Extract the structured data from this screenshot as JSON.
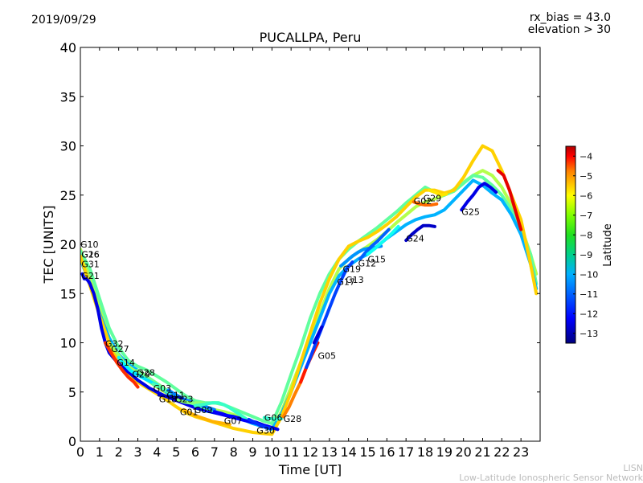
{
  "header": {
    "date": "2019/09/29",
    "rx_bias": "rx_bias = 43.0",
    "elevation": "elevation > 30"
  },
  "footer": {
    "credit_short": "LISN",
    "credit_full": "Low-Latitude Ionospheric Sensor Network"
  },
  "chart_data": {
    "type": "scatter",
    "title": "PUCALLPA, Peru",
    "xlabel": "Time [UT]",
    "ylabel": "TEC [UNITS]",
    "xlim": [
      0,
      24
    ],
    "ylim": [
      0,
      40
    ],
    "x_ticks": [
      0,
      1,
      2,
      3,
      4,
      5,
      6,
      7,
      8,
      9,
      10,
      11,
      12,
      13,
      14,
      15,
      16,
      17,
      18,
      19,
      20,
      21,
      22,
      23
    ],
    "y_ticks": [
      0,
      5,
      10,
      15,
      20,
      25,
      30,
      35,
      40
    ],
    "grid": false,
    "colorbar": {
      "label": "Latitude",
      "range": [
        -13.5,
        -3.5
      ],
      "ticks": [
        -13,
        -12,
        -11,
        -10,
        -9,
        -8,
        -7,
        -6,
        -5,
        -4
      ],
      "colormap": [
        "#00007f",
        "#0000ff",
        "#007fff",
        "#00ffff",
        "#7fff7f",
        "#ffff00",
        "#ff7f00",
        "#ff0000",
        "#7f0000"
      ]
    },
    "series": [
      {
        "name": "G10",
        "lat": -8.0,
        "x": [
          0.0,
          0.5,
          1.0,
          1.5,
          2.0,
          2.5,
          3.0,
          3.5,
          4.0,
          4.5,
          5.0,
          5.5,
          6.0,
          6.5,
          7.0,
          7.5,
          8.0,
          8.5,
          9.0,
          9.5,
          10.0,
          10.5,
          11.0,
          11.5,
          12.0,
          12.5,
          13.0,
          13.5,
          14.0,
          14.5,
          15.0,
          15.5,
          16.0,
          16.5,
          17.0,
          17.5,
          18.0,
          18.5,
          19.0,
          19.5,
          20.0,
          20.5,
          21.0,
          21.5,
          22.0,
          22.5,
          23.0,
          23.5,
          23.8
        ],
        "y": [
          19.5,
          16.5,
          13.5,
          10.5,
          8.5,
          7.5,
          6.8,
          6.2,
          5.5,
          4.9,
          4.3,
          3.8,
          3.5,
          3.3,
          3.2,
          3.0,
          2.7,
          2.3,
          2.0,
          1.7,
          1.3,
          3.0,
          5.5,
          8.0,
          10.5,
          13.0,
          15.5,
          17.5,
          18.5,
          19.2,
          19.8,
          20.5,
          21.3,
          22.2,
          23.0,
          23.8,
          24.3,
          24.6,
          25.0,
          25.6,
          26.3,
          27.0,
          27.5,
          27.0,
          25.8,
          24.0,
          21.8,
          19.0,
          17.0
        ]
      },
      {
        "name": "G16",
        "lat": -8.8,
        "x": [
          0.0,
          0.5,
          1.0,
          1.5,
          2.0,
          2.5,
          3.0,
          3.5,
          4.0,
          4.5,
          5.0,
          5.5,
          6.0,
          6.5,
          7.0,
          7.5,
          8.0,
          8.5,
          9.0,
          9.5,
          10.0,
          10.5,
          11.0,
          11.5,
          12.0,
          12.5,
          13.0,
          13.5,
          14.0,
          14.5,
          15.0,
          15.5,
          16.0,
          16.5,
          17.0,
          17.5,
          18.0,
          18.5,
          19.0,
          19.5,
          20.0,
          20.5,
          21.0,
          21.5,
          22.0,
          22.5,
          23.0,
          23.5,
          23.8
        ],
        "y": [
          19.3,
          17.5,
          14.5,
          11.5,
          9.5,
          8.2,
          7.6,
          7.2,
          6.6,
          6.0,
          5.3,
          4.6,
          4.1,
          3.9,
          3.9,
          3.7,
          3.3,
          2.9,
          2.5,
          2.1,
          1.8,
          4.0,
          6.8,
          9.5,
          12.5,
          15.0,
          17.0,
          18.5,
          19.5,
          20.3,
          21.0,
          21.7,
          22.5,
          23.3,
          24.2,
          25.0,
          25.8,
          25.3,
          25.0,
          25.4,
          26.2,
          27.0,
          26.8,
          26.0,
          25.0,
          23.5,
          21.5,
          19.0,
          16.0
        ]
      },
      {
        "name": "G31",
        "lat": -10.5,
        "x": [
          0.0,
          0.5,
          1.0,
          1.5,
          2.0,
          2.5,
          3.0,
          3.5,
          4.0,
          4.5,
          5.0,
          5.5,
          6.0,
          6.5,
          7.0,
          7.5,
          8.0,
          8.5,
          9.0,
          9.5,
          10.0,
          10.5,
          11.0,
          11.5,
          12.0,
          12.5,
          13.0,
          13.5,
          14.0,
          14.5,
          15.0,
          15.5,
          16.0,
          16.5,
          17.0,
          17.5,
          18.0,
          18.5,
          19.0,
          19.5,
          20.0,
          20.5,
          21.0,
          21.5,
          22.0,
          22.5,
          23.0,
          23.5,
          23.8
        ],
        "y": [
          18.5,
          16.0,
          13.0,
          10.5,
          8.8,
          7.8,
          7.2,
          6.5,
          5.8,
          5.0,
          4.3,
          3.8,
          3.4,
          3.1,
          2.9,
          2.7,
          2.5,
          2.2,
          1.8,
          1.5,
          1.2,
          2.8,
          5.0,
          7.5,
          10.0,
          12.5,
          15.0,
          16.8,
          17.8,
          18.5,
          19.0,
          19.8,
          20.6,
          21.3,
          22.0,
          22.5,
          22.8,
          23.0,
          23.5,
          24.5,
          25.5,
          26.5,
          26.0,
          25.2,
          24.5,
          23.0,
          21.0,
          18.0,
          15.5
        ]
      },
      {
        "name": "G26",
        "lat": -6.8,
        "x": [
          0.0,
          0.5,
          1.0,
          1.5,
          2.0,
          2.5,
          3.0,
          3.5,
          4.0,
          4.5,
          5.0,
          5.5,
          6.0,
          6.5,
          7.0,
          7.5,
          8.0,
          8.5,
          9.0,
          9.5,
          10.0,
          10.5,
          11.0,
          11.5,
          12.0,
          12.5,
          13.0,
          13.5,
          14.0,
          14.5,
          15.0,
          15.5,
          16.0,
          16.5,
          17.0,
          17.5,
          18.0,
          18.5,
          19.0,
          19.5,
          20.0,
          20.5,
          21.0,
          21.5,
          22.0,
          22.5,
          23.0,
          23.5,
          23.8
        ],
        "y": [
          18.8,
          15.8,
          12.8,
          10.0,
          8.0,
          6.8,
          6.0,
          5.4,
          4.8,
          4.2,
          3.5,
          2.9,
          2.5,
          2.2,
          1.9,
          1.6,
          1.3,
          1.1,
          0.9,
          0.8,
          0.7,
          2.5,
          5.0,
          8.0,
          11.0,
          14.0,
          16.5,
          18.5,
          19.8,
          20.3,
          20.7,
          21.3,
          22.0,
          22.8,
          23.8,
          24.8,
          25.5,
          25.5,
          25.2,
          25.5,
          26.8,
          28.5,
          30.0,
          29.5,
          27.5,
          25.0,
          22.5,
          18.0,
          15.0
        ]
      },
      {
        "name": "G21",
        "lat": -12.5,
        "x": [
          0.1,
          0.2,
          0.3,
          0.4,
          0.5,
          0.7,
          0.9,
          1.1,
          1.3,
          1.5,
          1.8,
          2.1,
          2.4,
          2.7,
          3.0,
          3.3,
          3.6,
          4.0,
          4.4,
          4.8,
          5.2,
          5.6,
          6.0,
          6.4,
          6.8,
          7.2,
          7.6,
          8.0,
          8.4,
          8.8,
          9.2,
          9.6,
          10.0,
          10.3
        ],
        "y": [
          17.0,
          16.5,
          16.5,
          16.3,
          16.0,
          15.0,
          13.5,
          11.5,
          10.0,
          9.0,
          8.3,
          7.7,
          7.2,
          6.7,
          6.2,
          5.8,
          5.4,
          5.0,
          4.6,
          4.3,
          4.0,
          3.7,
          3.4,
          3.2,
          3.0,
          2.8,
          2.6,
          2.5,
          2.3,
          2.1,
          1.9,
          1.6,
          1.4,
          1.2
        ]
      },
      {
        "name": "G32",
        "lat": -5.2,
        "x": [
          1.3,
          1.6,
          1.9,
          2.2,
          2.5,
          2.8,
          3.0
        ],
        "y": [
          10.0,
          9.0,
          8.0,
          7.2,
          6.5,
          6.0,
          5.5
        ]
      },
      {
        "name": "G27",
        "lat": -8.2,
        "x": [
          1.6,
          1.9,
          2.2,
          2.5,
          2.8,
          3.1,
          3.4
        ],
        "y": [
          9.8,
          9.0,
          8.2,
          7.6,
          7.2,
          6.9,
          6.6
        ]
      },
      {
        "name": "G14",
        "lat": -9.8,
        "x": [
          2.0,
          2.3,
          2.6,
          2.9,
          3.2,
          3.5,
          3.8,
          4.1
        ],
        "y": [
          8.5,
          7.8,
          7.2,
          6.8,
          6.6,
          6.3,
          6.0,
          5.6
        ]
      },
      {
        "name": "G28",
        "lat": -8.6,
        "x": [
          3.0,
          3.3,
          3.6,
          3.9,
          4.2,
          4.5,
          4.8,
          5.0
        ],
        "y": [
          7.2,
          6.8,
          6.4,
          6.0,
          5.6,
          5.2,
          4.8,
          4.5
        ]
      },
      {
        "name": "G29",
        "lat": -10.0,
        "x": [
          2.8,
          3.1,
          3.4,
          3.7,
          4.0
        ],
        "y": [
          7.0,
          6.6,
          6.3,
          6.0,
          5.7
        ]
      },
      {
        "name": "G03",
        "lat": -9.0,
        "x": [
          3.8,
          4.1,
          4.4,
          4.7,
          5.0,
          5.3,
          5.6,
          5.9,
          6.2,
          6.5,
          6.8,
          7.1
        ],
        "y": [
          5.8,
          5.5,
          5.2,
          4.9,
          4.6,
          4.3,
          4.0,
          3.8,
          3.6,
          3.4,
          3.2,
          3.0
        ]
      },
      {
        "name": "G11",
        "lat": -11.0,
        "x": [
          4.6,
          4.9,
          5.2,
          5.5,
          5.8,
          6.1,
          6.4,
          6.7,
          7.0
        ],
        "y": [
          5.2,
          4.8,
          4.5,
          4.2,
          4.0,
          3.8,
          3.6,
          3.4,
          3.2
        ]
      },
      {
        "name": "G18",
        "lat": -12.8,
        "x": [
          4.1,
          4.4,
          4.7,
          5.0,
          5.3
        ],
        "y": [
          4.7,
          4.6,
          4.5,
          4.4,
          4.3
        ]
      },
      {
        "name": "G23",
        "lat": -8.4,
        "x": [
          5.1,
          5.4,
          5.7,
          6.0,
          6.3,
          6.6,
          6.9,
          7.2,
          7.5,
          7.8,
          8.1
        ],
        "y": [
          4.2,
          4.0,
          3.9,
          3.9,
          3.9,
          3.8,
          3.9,
          3.9,
          3.7,
          3.4,
          3.0
        ]
      },
      {
        "name": "G01",
        "lat": -6.5,
        "x": [
          5.4,
          5.7,
          6.0,
          6.3,
          6.6,
          6.9,
          7.2,
          7.5,
          7.8
        ],
        "y": [
          3.2,
          2.9,
          2.6,
          2.4,
          2.2,
          2.0,
          1.9,
          1.8,
          1.7
        ]
      },
      {
        "name": "G09",
        "lat": -9.2,
        "x": [
          6.0,
          6.3,
          6.6,
          6.9,
          7.2,
          7.5,
          7.8,
          8.1,
          8.4,
          8.7,
          9.0
        ],
        "y": [
          3.6,
          3.7,
          3.8,
          3.9,
          3.9,
          3.7,
          3.4,
          3.0,
          2.6,
          2.2,
          1.9
        ]
      },
      {
        "name": "G07",
        "lat": -12.3,
        "x": [
          7.0,
          7.4,
          7.8,
          8.2,
          8.6,
          9.0,
          9.4,
          9.8
        ],
        "y": [
          3.0,
          2.8,
          2.5,
          2.3,
          2.1,
          1.9,
          1.7,
          1.5
        ]
      },
      {
        "name": "G30",
        "lat": -11.8,
        "x": [
          8.8,
          9.1,
          9.4,
          9.7,
          10.0
        ],
        "y": [
          2.2,
          1.9,
          1.6,
          1.4,
          1.3
        ]
      },
      {
        "name": "G06",
        "lat": -9.3,
        "x": [
          9.6,
          9.9,
          10.2,
          10.5
        ],
        "y": [
          2.4,
          2.3,
          2.2,
          2.3
        ]
      },
      {
        "name": "G28b",
        "lat": -6.0,
        "x": [
          10.6,
          10.9,
          11.2,
          11.5,
          11.8
        ],
        "y": [
          2.5,
          3.5,
          4.8,
          6.0,
          7.5
        ]
      },
      {
        "name": "G05",
        "lat": -5.0,
        "x": [
          11.5,
          11.8,
          12.1,
          12.4
        ],
        "y": [
          6.0,
          7.5,
          8.8,
          10.0
        ]
      },
      {
        "name": "G17",
        "lat": -11.6,
        "x": [
          11.8,
          12.1,
          12.4,
          12.7,
          13.0,
          13.3,
          13.6,
          13.9,
          14.2
        ],
        "y": [
          7.5,
          9.0,
          10.5,
          12.0,
          13.5,
          15.0,
          16.3,
          17.5,
          18.2
        ]
      },
      {
        "name": "G13",
        "lat": -12.6,
        "x": [
          12.2,
          12.4,
          12.6
        ],
        "y": [
          10.0,
          10.8,
          11.6
        ]
      },
      {
        "name": "G19",
        "lat": -10.8,
        "x": [
          13.6,
          13.9,
          14.2,
          14.5,
          14.8,
          15.1,
          15.4,
          15.7
        ],
        "y": [
          17.8,
          18.3,
          18.8,
          19.2,
          19.5,
          19.6,
          19.7,
          19.8
        ]
      },
      {
        "name": "G12",
        "lat": -11.3,
        "x": [
          14.6,
          14.9,
          15.2,
          15.5,
          15.8,
          16.1
        ],
        "y": [
          18.5,
          19.2,
          19.8,
          20.3,
          20.9,
          21.5
        ]
      },
      {
        "name": "G15",
        "lat": -9.6,
        "x": [
          15.0,
          15.4,
          15.8,
          16.2,
          16.6
        ],
        "y": [
          19.0,
          19.6,
          20.3,
          21.0,
          21.8
        ]
      },
      {
        "name": "G24",
        "lat": -12.8,
        "x": [
          17.0,
          17.3,
          17.6,
          17.9,
          18.2,
          18.5
        ],
        "y": [
          20.4,
          21.0,
          21.5,
          21.9,
          21.9,
          21.8
        ]
      },
      {
        "name": "G02",
        "lat": -5.8,
        "x": [
          17.4,
          17.7,
          18.0,
          18.3,
          18.6
        ],
        "y": [
          24.3,
          24.1,
          24.0,
          24.0,
          24.1
        ]
      },
      {
        "name": "G29b",
        "lat": -7.0,
        "x": [
          18.2,
          18.5,
          18.8,
          19.1
        ],
        "y": [
          25.5,
          25.3,
          25.0,
          25.1
        ]
      },
      {
        "name": "G25",
        "lat": -12.5,
        "x": [
          19.9,
          20.2,
          20.5,
          20.8,
          21.1,
          21.4,
          21.7
        ],
        "y": [
          23.5,
          24.3,
          25.0,
          25.8,
          26.2,
          25.8,
          25.3
        ]
      },
      {
        "name": "G32b",
        "lat": -4.5,
        "x": [
          21.8,
          22.1,
          22.4,
          22.7,
          23.0
        ],
        "y": [
          27.5,
          27.0,
          25.5,
          23.5,
          21.5
        ]
      }
    ],
    "labels": [
      {
        "text": "G10",
        "x": 0.0,
        "y": 20.0
      },
      {
        "text": "G16",
        "x": 0.05,
        "y": 19.0
      },
      {
        "text": "G26",
        "x": 0.05,
        "y": 19.0
      },
      {
        "text": "G31",
        "x": 0.05,
        "y": 18.0
      },
      {
        "text": "G21",
        "x": 0.05,
        "y": 16.8
      },
      {
        "text": "G32",
        "x": 1.3,
        "y": 9.9
      },
      {
        "text": "G27",
        "x": 1.6,
        "y": 9.4
      },
      {
        "text": "G14",
        "x": 1.9,
        "y": 8.0
      },
      {
        "text": "G29",
        "x": 2.7,
        "y": 6.8
      },
      {
        "text": "G28",
        "x": 2.95,
        "y": 7.0
      },
      {
        "text": "G03",
        "x": 3.8,
        "y": 5.4
      },
      {
        "text": "G11",
        "x": 4.5,
        "y": 4.7
      },
      {
        "text": "G18",
        "x": 4.1,
        "y": 4.3
      },
      {
        "text": "G23",
        "x": 4.95,
        "y": 4.3
      },
      {
        "text": "G01",
        "x": 5.2,
        "y": 3.0
      },
      {
        "text": "G09",
        "x": 5.95,
        "y": 3.2
      },
      {
        "text": "G07",
        "x": 7.5,
        "y": 2.1
      },
      {
        "text": "G30",
        "x": 9.2,
        "y": 1.1
      },
      {
        "text": "G06",
        "x": 9.6,
        "y": 2.4
      },
      {
        "text": "G28",
        "x": 10.6,
        "y": 2.3
      },
      {
        "text": "G05",
        "x": 12.4,
        "y": 8.7
      },
      {
        "text": "G19",
        "x": 13.7,
        "y": 17.5
      },
      {
        "text": "G17",
        "x": 13.4,
        "y": 16.2
      },
      {
        "text": "G13",
        "x": 13.85,
        "y": 16.4
      },
      {
        "text": "G12",
        "x": 14.5,
        "y": 18.1
      },
      {
        "text": "G15",
        "x": 15.0,
        "y": 18.5
      },
      {
        "text": "G24",
        "x": 17.0,
        "y": 20.6
      },
      {
        "text": "G02",
        "x": 17.4,
        "y": 24.4
      },
      {
        "text": "G29",
        "x": 17.9,
        "y": 24.7
      },
      {
        "text": "G25",
        "x": 19.9,
        "y": 23.3
      }
    ]
  }
}
